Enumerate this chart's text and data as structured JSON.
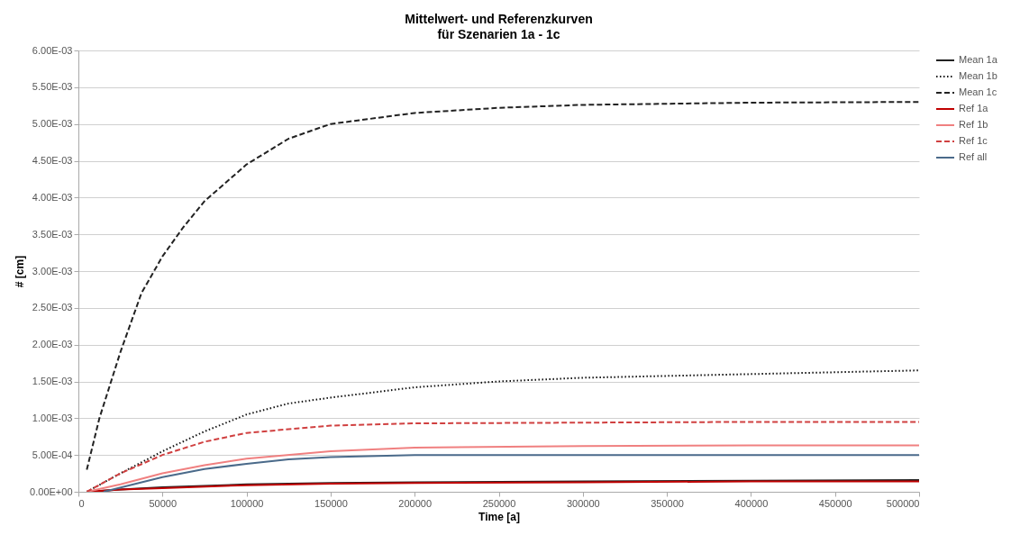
{
  "chart_data": {
    "type": "line",
    "title": "Mittelwert-  und Referenzkurven",
    "subtitle": "für Szenarien 1a - 1c",
    "xlabel": "Time [a]",
    "ylabel": "# [cm]",
    "xlim": [
      0,
      500000
    ],
    "xticks": [
      0,
      50000,
      100000,
      150000,
      200000,
      250000,
      300000,
      350000,
      400000,
      450000,
      500000
    ],
    "ylim": [
      0,
      0.006
    ],
    "yticks": [
      {
        "value": 0,
        "label": "0.00E+00"
      },
      {
        "value": 0.0005,
        "label": "5.00E-04"
      },
      {
        "value": 0.001,
        "label": "1.00E-03"
      },
      {
        "value": 0.0015,
        "label": "1.50E-03"
      },
      {
        "value": 0.002,
        "label": "2.00E-03"
      },
      {
        "value": 0.0025,
        "label": "2.50E-03"
      },
      {
        "value": 0.003,
        "label": "3.00E-03"
      },
      {
        "value": 0.0035,
        "label": "3.50E-03"
      },
      {
        "value": 0.004,
        "label": "4.00E-03"
      },
      {
        "value": 0.0045,
        "label": "4.50E-03"
      },
      {
        "value": 0.005,
        "label": "5.00E-03"
      },
      {
        "value": 0.0055,
        "label": "5.50E-03"
      },
      {
        "value": 0.006,
        "label": "6.00E-03"
      }
    ],
    "grid": "y",
    "legend": "right",
    "series": [
      {
        "name": "Mean 1a",
        "color": "#222222",
        "line_style": "solid",
        "x": [
          5000,
          25000,
          50000,
          100000,
          150000,
          200000,
          300000,
          400000,
          500000
        ],
        "values": [
          0,
          3e-05,
          6e-05,
          0.0001,
          0.00012,
          0.00013,
          0.00014,
          0.00015,
          0.00016
        ]
      },
      {
        "name": "Mean 1b",
        "color": "#111111",
        "line_style": "dotted",
        "x": [
          5000,
          25000,
          50000,
          75000,
          100000,
          125000,
          150000,
          200000,
          250000,
          300000,
          400000,
          500000
        ],
        "values": [
          0,
          0.00025,
          0.00055,
          0.00082,
          0.00105,
          0.0012,
          0.00128,
          0.00142,
          0.0015,
          0.00155,
          0.0016,
          0.00165
        ]
      },
      {
        "name": "Mean 1c",
        "color": "#222222",
        "line_style": "dashed",
        "x": [
          5000,
          12500,
          25000,
          37500,
          50000,
          62500,
          75000,
          100000,
          125000,
          150000,
          200000,
          250000,
          300000,
          400000,
          500000
        ],
        "values": [
          0.0003,
          0.001,
          0.0019,
          0.0027,
          0.0032,
          0.0036,
          0.00395,
          0.00445,
          0.0048,
          0.005,
          0.00515,
          0.00522,
          0.00526,
          0.00529,
          0.0053
        ]
      },
      {
        "name": "Ref 1a",
        "color": "#c00000",
        "line_style": "solid",
        "x": [
          5000,
          25000,
          50000,
          100000,
          150000,
          200000,
          300000,
          400000,
          500000
        ],
        "values": [
          0,
          3e-05,
          5e-05,
          9e-05,
          0.00011,
          0.00012,
          0.00013,
          0.00014,
          0.00014
        ]
      },
      {
        "name": "Ref 1b",
        "color": "#f08080",
        "line_style": "solid",
        "x": [
          5000,
          25000,
          50000,
          75000,
          100000,
          150000,
          200000,
          300000,
          400000,
          500000
        ],
        "values": [
          0,
          0.0001,
          0.00025,
          0.00036,
          0.00045,
          0.00055,
          0.0006,
          0.00062,
          0.00063,
          0.00063
        ]
      },
      {
        "name": "Ref 1c",
        "color": "#d04040",
        "line_style": "dashed",
        "x": [
          5000,
          25000,
          50000,
          75000,
          100000,
          150000,
          200000,
          300000,
          400000,
          500000
        ],
        "values": [
          0,
          0.00025,
          0.0005,
          0.00068,
          0.0008,
          0.0009,
          0.00093,
          0.00094,
          0.00095,
          0.00095
        ]
      },
      {
        "name": "Ref all",
        "color": "#4a6a8a",
        "line_style": "solid",
        "x": [
          15000,
          50000,
          75000,
          100000,
          125000,
          150000,
          200000,
          300000,
          400000,
          500000
        ],
        "values": [
          0,
          0.0002,
          0.00031,
          0.00038,
          0.00044,
          0.00047,
          0.0005,
          0.0005,
          0.0005,
          0.0005
        ]
      }
    ]
  }
}
